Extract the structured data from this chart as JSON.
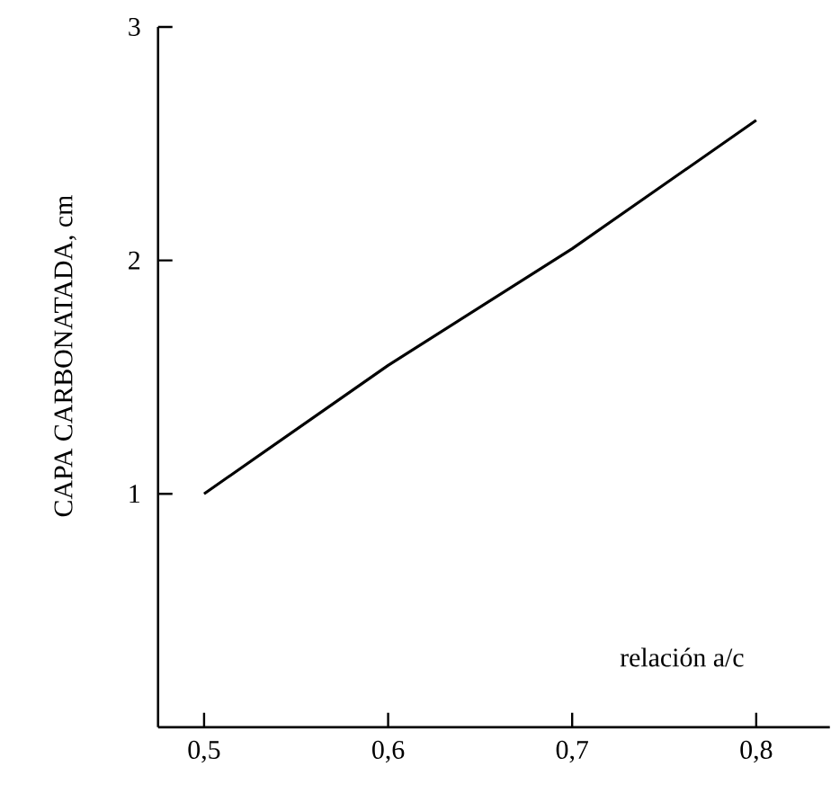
{
  "chart_data": {
    "type": "line",
    "xlabel": "relación a/c",
    "ylabel": "CAPA CARBONATADA, cm",
    "x": [
      0.5,
      0.6,
      0.7,
      0.8
    ],
    "series": [
      {
        "color": "#000000",
        "values": [
          1.0,
          1.55,
          2.05,
          2.6
        ]
      }
    ],
    "xlim": [
      0.475,
      0.84
    ],
    "ylim": [
      0,
      3
    ],
    "xticks": [
      {
        "value": 0.5,
        "label": "0,5"
      },
      {
        "value": 0.6,
        "label": "0,6"
      },
      {
        "value": 0.7,
        "label": "0,7"
      },
      {
        "value": 0.8,
        "label": "0,8"
      }
    ],
    "yticks": [
      1,
      2,
      3
    ],
    "marker": "none",
    "line_style": "solid"
  }
}
